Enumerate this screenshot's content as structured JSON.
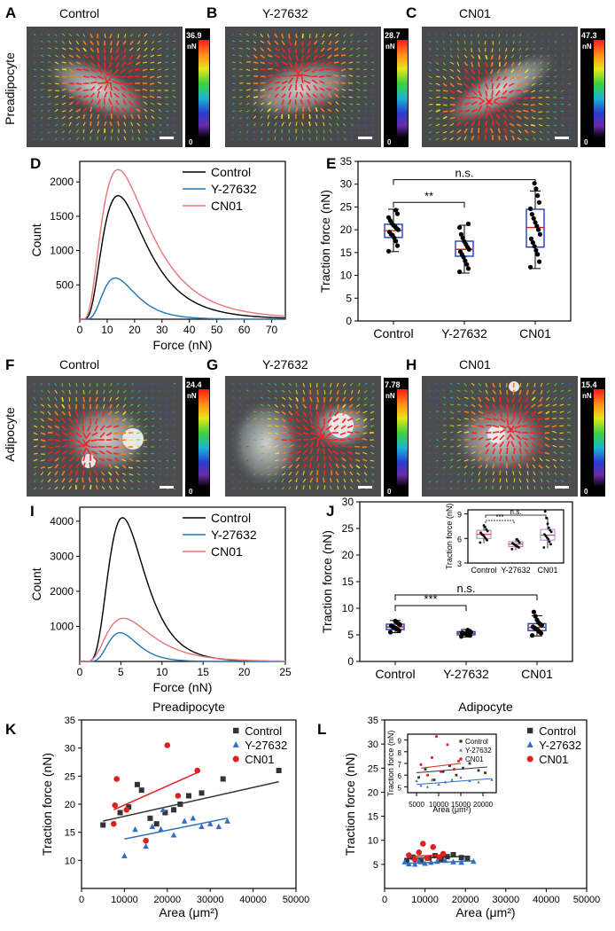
{
  "panel_letters": [
    "A",
    "B",
    "C",
    "D",
    "E",
    "F",
    "G",
    "H",
    "I",
    "J",
    "K",
    "L"
  ],
  "row_labels": {
    "preadipocyte": "Preadipocyte",
    "adipocyte": "Adipocyte"
  },
  "micrographs": [
    {
      "letter": "A",
      "title": "Control",
      "cbar_max": "36.9",
      "cbar_unit": "nN",
      "cbar_min": "0"
    },
    {
      "letter": "B",
      "title": "Y-27632",
      "cbar_max": "28.7",
      "cbar_unit": "nN",
      "cbar_min": "0"
    },
    {
      "letter": "C",
      "title": "CN01",
      "cbar_max": "47.3",
      "cbar_unit": "nN",
      "cbar_min": "0"
    },
    {
      "letter": "F",
      "title": "Control",
      "cbar_max": "24.4",
      "cbar_unit": "nN",
      "cbar_min": "0"
    },
    {
      "letter": "G",
      "title": "Y-27632",
      "cbar_max": "7.78",
      "cbar_unit": "nN",
      "cbar_min": "0"
    },
    {
      "letter": "H",
      "title": "CN01",
      "cbar_max": "15.4",
      "cbar_unit": "nN",
      "cbar_min": "0"
    }
  ],
  "colors": {
    "control": "#000000",
    "y27632": "#1f77b4",
    "cn01": "#e8737a",
    "box": "#1f3fbf",
    "median": "#e0201f",
    "scatter_control": "#333333",
    "scatter_y": "#2f6fc4",
    "scatter_cn": "#e02020"
  },
  "chart_data": [
    {
      "id": "D",
      "type": "line",
      "xlabel": "Force (nN)",
      "ylabel": "Count",
      "xlim": [
        0,
        75
      ],
      "ylim": [
        0,
        2300
      ],
      "xticks": [
        0,
        10,
        20,
        30,
        40,
        50,
        60,
        70
      ],
      "yticks": [
        500,
        1000,
        1500,
        2000
      ],
      "legend": "top-right",
      "series": [
        {
          "name": "Control",
          "peak_x": 14,
          "peak_y": 1800,
          "sigma": 0.55
        },
        {
          "name": "Y-27632",
          "peak_x": 13,
          "peak_y": 600,
          "sigma": 0.45
        },
        {
          "name": "CN01",
          "peak_x": 14,
          "peak_y": 2180,
          "sigma": 0.6
        }
      ]
    },
    {
      "id": "E",
      "type": "box",
      "ylabel": "Traction force (nN)",
      "ylim": [
        0,
        35
      ],
      "yticks": [
        0,
        5,
        10,
        15,
        20,
        25,
        30,
        35
      ],
      "categories": [
        "Control",
        "Y-27632",
        "CN01"
      ],
      "boxes": [
        {
          "q1": 18.3,
          "median": 19.8,
          "q3": 21.2,
          "whisker_low": 15.2,
          "whisker_high": 24.5,
          "mean": 19.6,
          "points": [
            15.3,
            16.5,
            17.5,
            18.2,
            18.8,
            19.0,
            19.5,
            20.0,
            20.3,
            20.7,
            21.0,
            21.4,
            22.0,
            22.7,
            23.5,
            24.3
          ]
        },
        {
          "q1": 14.2,
          "median": 15.7,
          "q3": 17.5,
          "whisker_low": 10.5,
          "whisker_high": 21.0,
          "mean": 15.8,
          "points": [
            10.8,
            11.5,
            12.4,
            13.2,
            14.0,
            14.6,
            15.2,
            15.7,
            16.2,
            16.8,
            17.4,
            18.2,
            19.0,
            20.5,
            21.3
          ]
        },
        {
          "q1": 16.2,
          "median": 20.5,
          "q3": 24.5,
          "whisker_low": 11.5,
          "whisker_high": 28.5,
          "mean": 20.6,
          "points": [
            11.8,
            13.0,
            14.6,
            15.5,
            16.4,
            17.2,
            18.0,
            19.0,
            20.0,
            20.8,
            21.6,
            22.5,
            23.4,
            24.6,
            26.0,
            27.5,
            29.0,
            30.2
          ]
        }
      ],
      "annotations": [
        {
          "text": "**",
          "from": 0,
          "to": 1
        },
        {
          "text": "n.s.",
          "from": 0,
          "to": 2
        }
      ]
    },
    {
      "id": "I",
      "type": "line",
      "xlabel": "Force (nN)",
      "ylabel": "Count",
      "xlim": [
        0,
        25
      ],
      "ylim": [
        0,
        4400
      ],
      "xticks": [
        0,
        5,
        10,
        15,
        20,
        25
      ],
      "yticks": [
        1000,
        2000,
        3000,
        4000
      ],
      "legend": "top-right",
      "series": [
        {
          "name": "Control",
          "peak_x": 5.2,
          "peak_y": 4100,
          "sigma": 0.42
        },
        {
          "name": "Y-27632",
          "peak_x": 4.9,
          "peak_y": 820,
          "sigma": 0.36
        },
        {
          "name": "CN01",
          "peak_x": 5.3,
          "peak_y": 1230,
          "sigma": 0.5
        }
      ]
    },
    {
      "id": "J",
      "type": "box",
      "ylabel": "Traction force (nN)",
      "ylim": [
        0,
        30
      ],
      "yticks": [
        0,
        5,
        10,
        15,
        20,
        25,
        30
      ],
      "categories": [
        "Control",
        "Y-27632",
        "CN01"
      ],
      "boxes": [
        {
          "q1": 6.0,
          "median": 6.5,
          "q3": 7.0,
          "whisker_low": 5.4,
          "whisker_high": 7.7,
          "mean": 6.5,
          "points": [
            5.5,
            5.8,
            6.0,
            6.2,
            6.4,
            6.5,
            6.7,
            6.9,
            7.1,
            7.4,
            7.6
          ]
        },
        {
          "q1": 5.0,
          "median": 5.3,
          "q3": 5.6,
          "whisker_low": 4.6,
          "whisker_high": 6.0,
          "mean": 5.3,
          "points": [
            4.7,
            4.9,
            5.0,
            5.1,
            5.2,
            5.3,
            5.4,
            5.5,
            5.7,
            5.9
          ]
        },
        {
          "q1": 5.8,
          "median": 6.4,
          "q3": 7.1,
          "whisker_low": 4.8,
          "whisker_high": 8.6,
          "mean": 6.5,
          "points": [
            4.9,
            5.3,
            5.6,
            5.9,
            6.1,
            6.3,
            6.5,
            6.8,
            7.0,
            7.3,
            7.8,
            8.5,
            9.3
          ]
        }
      ],
      "annotations": [
        {
          "text": "***",
          "from": 0,
          "to": 1
        },
        {
          "text": "n.s.",
          "from": 0,
          "to": 2
        }
      ],
      "inset": {
        "ylabel": "Traction force (nN)",
        "ylim": [
          3,
          9.5
        ],
        "yticks": [
          3,
          6,
          9
        ],
        "categories": [
          "Control",
          "Y-27632",
          "CN01"
        ],
        "annotations": [
          {
            "text": "***",
            "from": 0,
            "to": 1
          },
          {
            "text": "n.s.",
            "from": 0,
            "to": 2
          }
        ]
      }
    },
    {
      "id": "K",
      "type": "scatter",
      "title": "Preadipocyte",
      "xlabel": "Area (μm²)",
      "ylabel": "Traction force (nN)",
      "xlim": [
        0,
        50000
      ],
      "ylim": [
        5,
        35
      ],
      "xticks": [
        0,
        10000,
        20000,
        30000,
        40000,
        50000
      ],
      "yticks": [
        10,
        15,
        20,
        25,
        30,
        35
      ],
      "legend": "top-right",
      "series": [
        {
          "name": "Control",
          "marker": "square",
          "points": [
            [
              5000,
              16.3
            ],
            [
              9000,
              18.5
            ],
            [
              11000,
              19.5
            ],
            [
              13000,
              23.5
            ],
            [
              14000,
              22.5
            ],
            [
              16000,
              17.5
            ],
            [
              17500,
              16.5
            ],
            [
              19500,
              18.5
            ],
            [
              21500,
              19.0
            ],
            [
              23000,
              20.0
            ],
            [
              25000,
              21.5
            ],
            [
              28000,
              22.0
            ],
            [
              33000,
              24.5
            ],
            [
              46000,
              26.0
            ]
          ],
          "fit": [
            [
              5000,
              17.0
            ],
            [
              46000,
              24.0
            ]
          ]
        },
        {
          "name": "Y-27632",
          "marker": "triangle",
          "points": [
            [
              10000,
              10.8
            ],
            [
              12500,
              15.5
            ],
            [
              15000,
              12.5
            ],
            [
              16500,
              16.0
            ],
            [
              18500,
              15.5
            ],
            [
              19000,
              19.0
            ],
            [
              21500,
              14.5
            ],
            [
              24000,
              17.0
            ],
            [
              26000,
              17.5
            ],
            [
              28000,
              16.0
            ],
            [
              30000,
              16.5
            ],
            [
              32000,
              16.0
            ],
            [
              34000,
              17.0
            ]
          ],
          "fit": [
            [
              10000,
              13.8
            ],
            [
              34000,
              17.5
            ]
          ]
        },
        {
          "name": "CN01",
          "marker": "circle",
          "points": [
            [
              7500,
              16.5
            ],
            [
              7800,
              19.8
            ],
            [
              8200,
              24.5
            ],
            [
              10500,
              19.0
            ],
            [
              15000,
              13.5
            ],
            [
              20000,
              30.5
            ],
            [
              22500,
              21.5
            ],
            [
              27000,
              26.0
            ]
          ],
          "fit": [
            [
              7500,
              19.0
            ],
            [
              27500,
              25.8
            ]
          ]
        }
      ]
    },
    {
      "id": "L",
      "type": "scatter",
      "title": "Adipocyte",
      "xlabel": "Area (μm²)",
      "ylabel": "Traction force (nN)",
      "xlim": [
        0,
        50000
      ],
      "ylim": [
        0,
        35
      ],
      "xticks": [
        0,
        10000,
        20000,
        30000,
        40000,
        50000
      ],
      "yticks": [
        5,
        10,
        15,
        20,
        25,
        30,
        35
      ],
      "legend": "top-right",
      "series": [
        {
          "name": "Control",
          "marker": "square",
          "points": [
            [
              5500,
              5.8
            ],
            [
              7000,
              6.5
            ],
            [
              9000,
              5.6
            ],
            [
              11000,
              6.3
            ],
            [
              12500,
              6.8
            ],
            [
              14000,
              6.0
            ],
            [
              15500,
              6.6
            ],
            [
              17000,
              7.0
            ],
            [
              19000,
              6.4
            ],
            [
              20500,
              6.2
            ]
          ],
          "fit": [
            [
              5000,
              6.2
            ],
            [
              21000,
              6.7
            ]
          ]
        },
        {
          "name": "Y-27632",
          "marker": "triangle",
          "points": [
            [
              5000,
              5.5
            ],
            [
              6000,
              5.1
            ],
            [
              7500,
              5.0
            ],
            [
              8500,
              5.6
            ],
            [
              10000,
              5.2
            ],
            [
              11500,
              5.4
            ],
            [
              13000,
              5.6
            ],
            [
              15000,
              5.8
            ],
            [
              17000,
              5.5
            ],
            [
              19000,
              5.4
            ],
            [
              22000,
              5.6
            ]
          ],
          "fit": [
            [
              5000,
              5.2
            ],
            [
              22000,
              5.7
            ]
          ]
        },
        {
          "name": "CN01",
          "marker": "circle",
          "points": [
            [
              6000,
              6.9
            ],
            [
              7500,
              6.0
            ],
            [
              8500,
              7.5
            ],
            [
              9500,
              9.3
            ],
            [
              10500,
              6.3
            ],
            [
              12000,
              8.6
            ],
            [
              13500,
              6.5
            ],
            [
              14500,
              7.2
            ]
          ],
          "fit": [
            [
              6000,
              6.6
            ],
            [
              15000,
              7.0
            ]
          ]
        }
      ],
      "inset": {
        "ylabel": "Traction force (nN)",
        "xlabel": "Area (μm²)",
        "xticks": [
          5000,
          10000,
          15000,
          20000
        ],
        "yticks": [
          5,
          6,
          7,
          8,
          9
        ],
        "xlim": [
          3000,
          23000
        ],
        "ylim": [
          4.5,
          9.5
        ]
      }
    }
  ]
}
